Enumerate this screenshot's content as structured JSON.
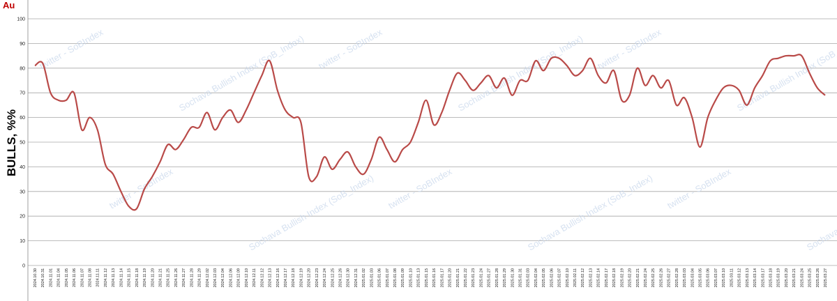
{
  "chart_data": {
    "type": "line",
    "corner_label": "Au",
    "y_label": "BULLS, %%",
    "watermarks": [
      "twitter - SoBIndex",
      "Sochava Bullish Index (SoB_Index)",
      "twitter - SoBIndex",
      "Sochava Bullish Index (SoB_Index)",
      "twitter - SoBIndex",
      "Sochava Bullish Index (SoB_Index)",
      "twitter - SoBIndex",
      "Sochava Bullish Index (SoB_Index)",
      "twitter - SoBIndex",
      "Sochava Bullish Index (SoB_Index)",
      "twitter - SoBIndex",
      "Sochava Bullish Index (SoB_Index)"
    ],
    "x": [
      "2024.10.30",
      "2024.10.31",
      "2024.11.01",
      "2024.11.04",
      "2024.11.05",
      "2024.11.06",
      "2024.11.07",
      "2024.11.08",
      "2024.11.11",
      "2024.11.12",
      "2024.11.13",
      "2024.11.14",
      "2024.11.15",
      "2024.11.18",
      "2024.11.19",
      "2024.11.20",
      "2024.11.21",
      "2024.11.25",
      "2024.11.26",
      "2024.11.27",
      "2024.11.28",
      "2024.11.29",
      "2024.12.02",
      "2024.12.03",
      "2024.12.04",
      "2024.12.06",
      "2024.12.09",
      "2024.12.10",
      "2024.12.11",
      "2024.12.12",
      "2024.12.13",
      "2024.12.16",
      "2024.12.17",
      "2024.12.18",
      "2024.12.19",
      "2024.12.20",
      "2024.12.23",
      "2024.12.24",
      "2024.12.25",
      "2024.12.26",
      "2024.12.30",
      "2024.12.31",
      "2025.01.02",
      "2025.01.03",
      "2025.01.06",
      "2025.01.07",
      "2025.01.08",
      "2025.01.09",
      "2025.01.10",
      "2025.01.13",
      "2025.01.15",
      "2025.01.16",
      "2025.01.17",
      "2025.01.20",
      "2025.01.21",
      "2025.01.22",
      "2025.01.23",
      "2025.01.24",
      "2025.01.27",
      "2025.01.28",
      "2025.01.29",
      "2025.01.30",
      "2025.01.31",
      "2025.02.03",
      "2025.02.04",
      "2025.02.05",
      "2025.02.06",
      "2025.02.07",
      "2025.02.10",
      "2025.02.11",
      "2025.02.12",
      "2025.02.13",
      "2025.02.14",
      "2025.02.17",
      "2025.02.18",
      "2025.02.19",
      "2025.02.20",
      "2025.02.21",
      "2025.02.24",
      "2025.02.25",
      "2025.02.26",
      "2025.02.27",
      "2025.02.28",
      "2025.03.03",
      "2025.03.04",
      "2025.03.05",
      "2025.03.06",
      "2025.03.07",
      "2025.03.10",
      "2025.03.11",
      "2025.03.12",
      "2025.03.13",
      "2025.03.14",
      "2025.03.17",
      "2025.03.18",
      "2025.03.19",
      "2025.03.20",
      "2025.03.21",
      "2025.03.24",
      "2025.03.25",
      "2025.03.26",
      "2025.03.27"
    ],
    "values": [
      81,
      82,
      70,
      67,
      67,
      70,
      55,
      60,
      55,
      41,
      37,
      30,
      24,
      23,
      31,
      36,
      42,
      49,
      47,
      51,
      56,
      56,
      62,
      55,
      60,
      63,
      58,
      63,
      70,
      77,
      83,
      71,
      63,
      60,
      58,
      36,
      36,
      44,
      39,
      43,
      46,
      40,
      37,
      43,
      52,
      47,
      42,
      47,
      50,
      58,
      67,
      57,
      62,
      71,
      78,
      75,
      71,
      74,
      77,
      72,
      76,
      69,
      75,
      75,
      83,
      79,
      84,
      84,
      81,
      77,
      79,
      84,
      77,
      74,
      79,
      67,
      69,
      80,
      73,
      77,
      72,
      75,
      65,
      68,
      60,
      48,
      60,
      67,
      72,
      73,
      71,
      65,
      72,
      77,
      83,
      84,
      85,
      85,
      85,
      78,
      72,
      69
    ],
    "color": "#b94a48",
    "ylim": [
      0,
      100
    ],
    "yticks": [
      0,
      10,
      20,
      30,
      40,
      50,
      60,
      70,
      80,
      90,
      100
    ],
    "grid": true
  }
}
